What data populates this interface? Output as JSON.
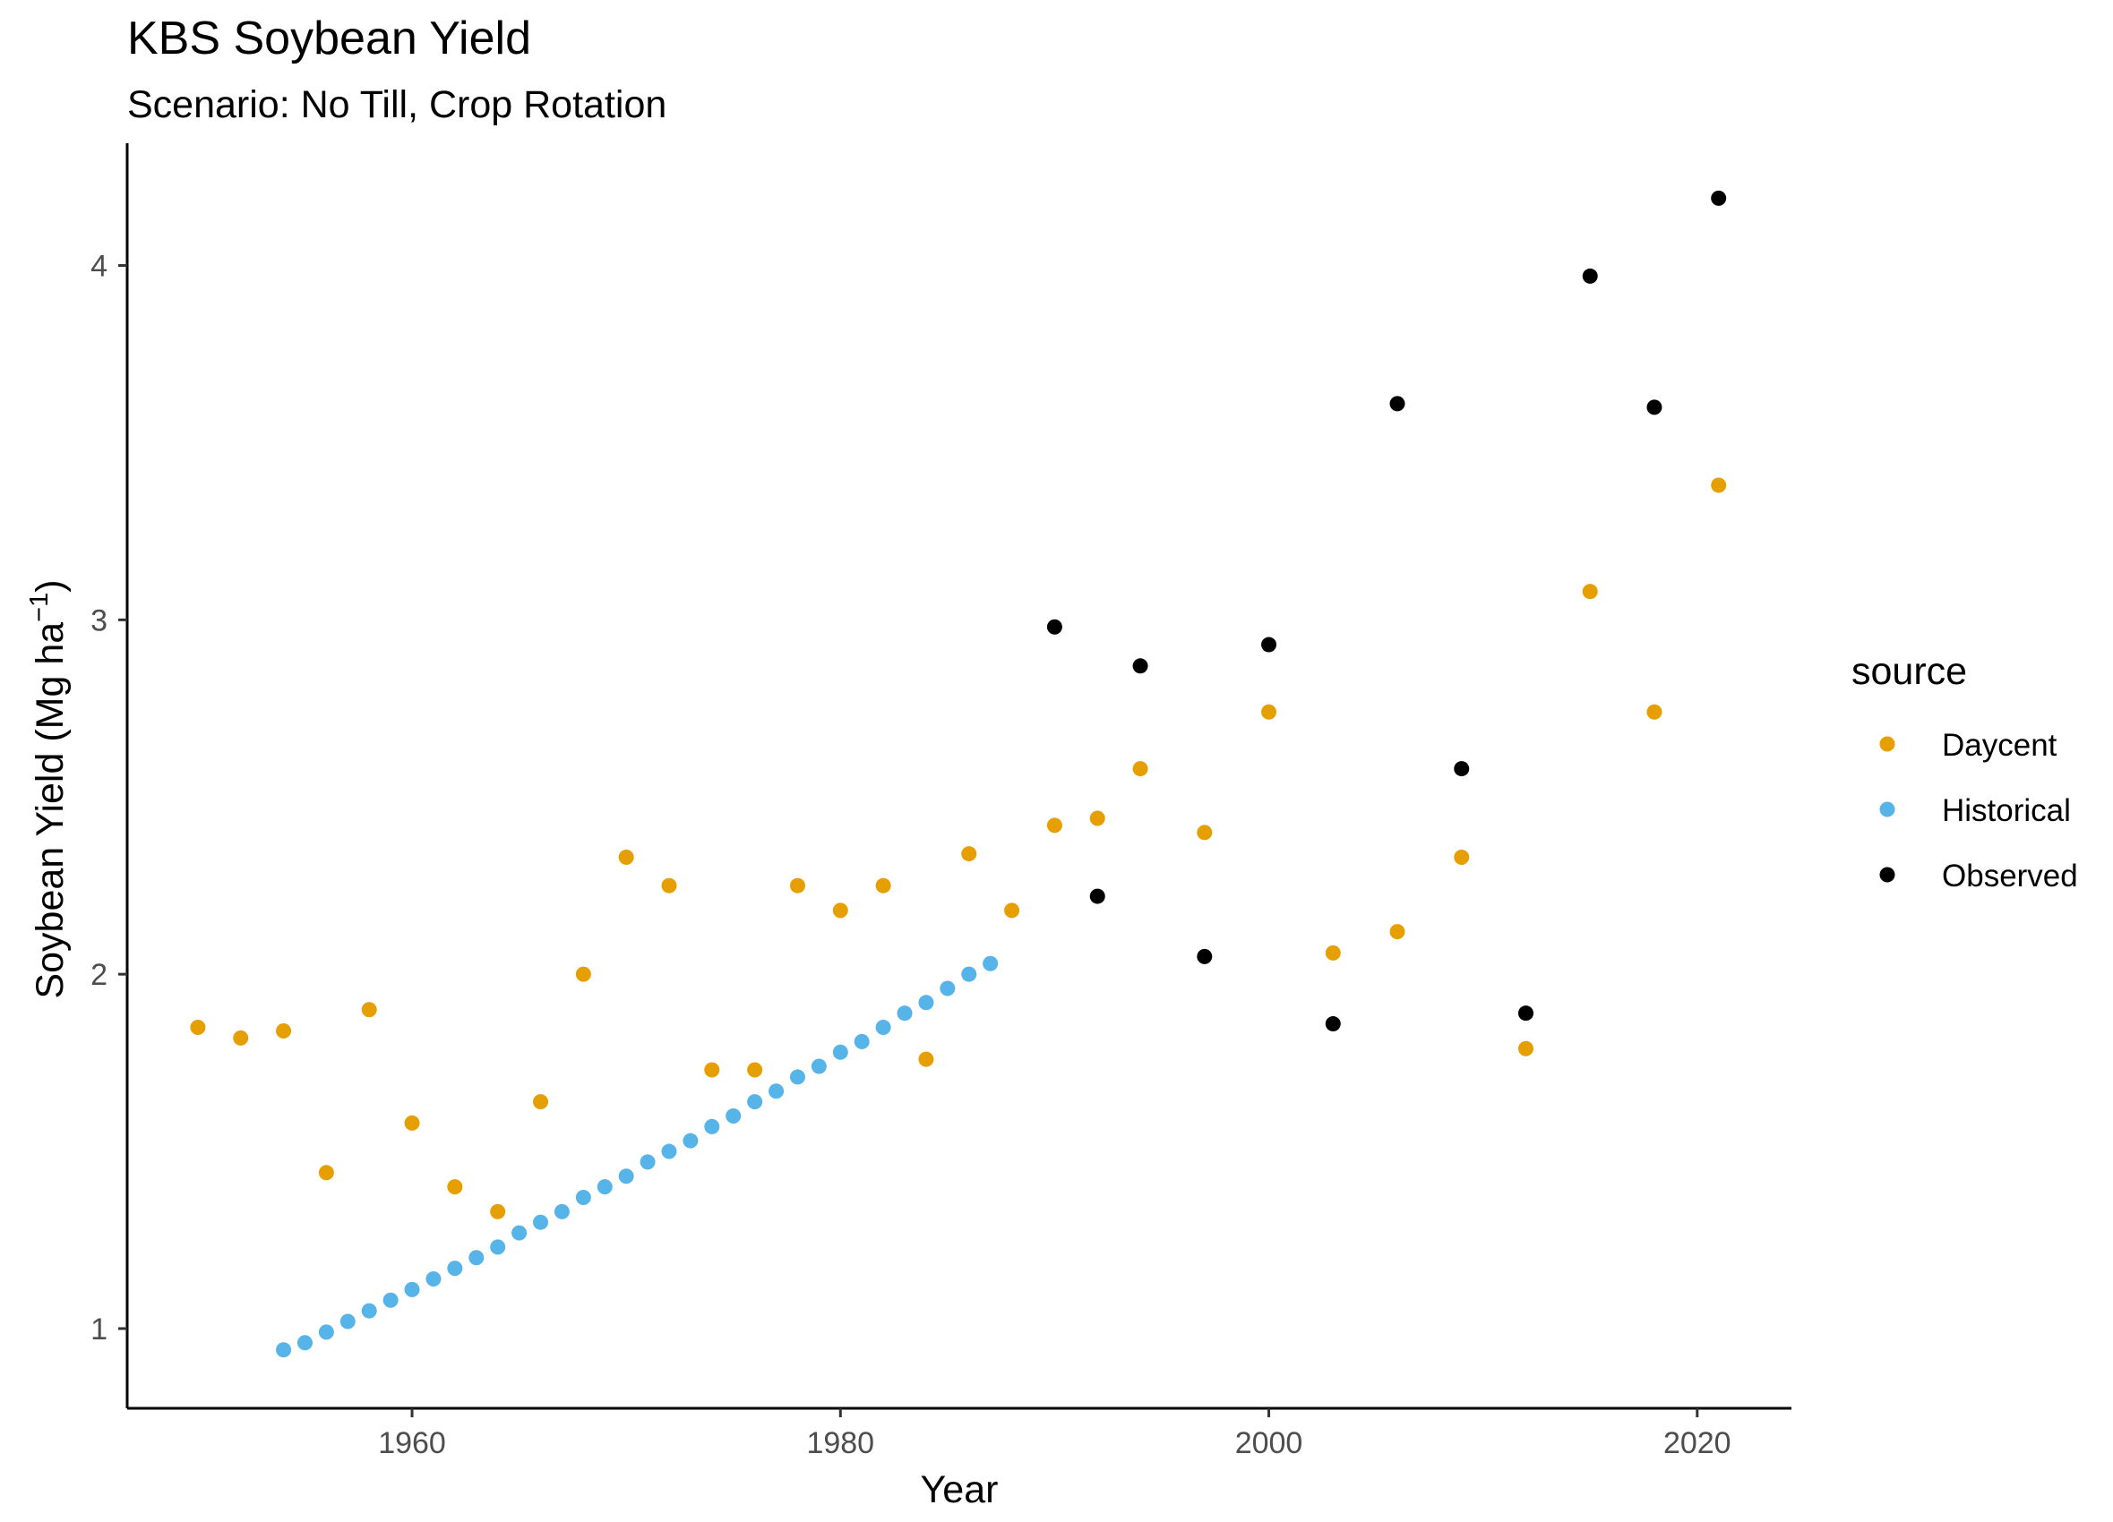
{
  "chart_data": {
    "type": "scatter",
    "title": "KBS Soybean Yield",
    "subtitle": "Scenario: No Till, Crop Rotation",
    "xlabel": "Year",
    "ylabel": "Soybean Yield (Mg ha",
    "ylabel_superscript": "−1",
    "ylabel_suffix": ")",
    "xlim": [
      1946.7,
      2024.4
    ],
    "ylim": [
      0.775,
      4.345
    ],
    "x_ticks": [
      1960,
      1980,
      2000,
      2020
    ],
    "y_ticks": [
      1,
      2,
      3,
      4
    ],
    "grid": false,
    "legend": {
      "title": "source",
      "position": "right"
    },
    "series": [
      {
        "name": "Daycent",
        "color": "#E69F00",
        "points": [
          {
            "x": 1950,
            "y": 1.85
          },
          {
            "x": 1952,
            "y": 1.82
          },
          {
            "x": 1954,
            "y": 1.84
          },
          {
            "x": 1956,
            "y": 1.44
          },
          {
            "x": 1958,
            "y": 1.9
          },
          {
            "x": 1960,
            "y": 1.58
          },
          {
            "x": 1962,
            "y": 1.4
          },
          {
            "x": 1964,
            "y": 1.33
          },
          {
            "x": 1966,
            "y": 1.64
          },
          {
            "x": 1968,
            "y": 2.0
          },
          {
            "x": 1970,
            "y": 2.33
          },
          {
            "x": 1972,
            "y": 2.25
          },
          {
            "x": 1974,
            "y": 1.73
          },
          {
            "x": 1976,
            "y": 1.73
          },
          {
            "x": 1978,
            "y": 2.25
          },
          {
            "x": 1980,
            "y": 2.18
          },
          {
            "x": 1982,
            "y": 2.25
          },
          {
            "x": 1984,
            "y": 1.76
          },
          {
            "x": 1986,
            "y": 2.34
          },
          {
            "x": 1988,
            "y": 2.18
          },
          {
            "x": 1990,
            "y": 2.42
          },
          {
            "x": 1992,
            "y": 2.44
          },
          {
            "x": 1994,
            "y": 2.58
          },
          {
            "x": 1997,
            "y": 2.4
          },
          {
            "x": 2000,
            "y": 2.74
          },
          {
            "x": 2003,
            "y": 2.06
          },
          {
            "x": 2006,
            "y": 2.12
          },
          {
            "x": 2009,
            "y": 2.33
          },
          {
            "x": 2012,
            "y": 1.79
          },
          {
            "x": 2015,
            "y": 3.08
          },
          {
            "x": 2018,
            "y": 2.74
          },
          {
            "x": 2021,
            "y": 3.38
          }
        ]
      },
      {
        "name": "Historical",
        "color": "#56B4E9",
        "points": [
          {
            "x": 1954,
            "y": 0.94
          },
          {
            "x": 1955,
            "y": 0.96
          },
          {
            "x": 1956,
            "y": 0.99
          },
          {
            "x": 1957,
            "y": 1.02
          },
          {
            "x": 1958,
            "y": 1.05
          },
          {
            "x": 1959,
            "y": 1.08
          },
          {
            "x": 1960,
            "y": 1.11
          },
          {
            "x": 1961,
            "y": 1.14
          },
          {
            "x": 1962,
            "y": 1.17
          },
          {
            "x": 1963,
            "y": 1.2
          },
          {
            "x": 1964,
            "y": 1.23
          },
          {
            "x": 1965,
            "y": 1.27
          },
          {
            "x": 1966,
            "y": 1.3
          },
          {
            "x": 1967,
            "y": 1.33
          },
          {
            "x": 1968,
            "y": 1.37
          },
          {
            "x": 1969,
            "y": 1.4
          },
          {
            "x": 1970,
            "y": 1.43
          },
          {
            "x": 1971,
            "y": 1.47
          },
          {
            "x": 1972,
            "y": 1.5
          },
          {
            "x": 1973,
            "y": 1.53
          },
          {
            "x": 1974,
            "y": 1.57
          },
          {
            "x": 1975,
            "y": 1.6
          },
          {
            "x": 1976,
            "y": 1.64
          },
          {
            "x": 1977,
            "y": 1.67
          },
          {
            "x": 1978,
            "y": 1.71
          },
          {
            "x": 1979,
            "y": 1.74
          },
          {
            "x": 1980,
            "y": 1.78
          },
          {
            "x": 1981,
            "y": 1.81
          },
          {
            "x": 1982,
            "y": 1.85
          },
          {
            "x": 1983,
            "y": 1.89
          },
          {
            "x": 1984,
            "y": 1.92
          },
          {
            "x": 1985,
            "y": 1.96
          },
          {
            "x": 1986,
            "y": 2.0
          },
          {
            "x": 1987,
            "y": 2.03
          }
        ]
      },
      {
        "name": "Observed",
        "color": "#000000",
        "points": [
          {
            "x": 1990,
            "y": 2.98
          },
          {
            "x": 1992,
            "y": 2.22
          },
          {
            "x": 1994,
            "y": 2.87
          },
          {
            "x": 1997,
            "y": 2.05
          },
          {
            "x": 2000,
            "y": 2.93
          },
          {
            "x": 2003,
            "y": 1.86
          },
          {
            "x": 2006,
            "y": 3.61
          },
          {
            "x": 2009,
            "y": 2.58
          },
          {
            "x": 2012,
            "y": 1.89
          },
          {
            "x": 2015,
            "y": 3.97
          },
          {
            "x": 2018,
            "y": 3.6
          },
          {
            "x": 2021,
            "y": 4.19
          }
        ]
      }
    ]
  }
}
